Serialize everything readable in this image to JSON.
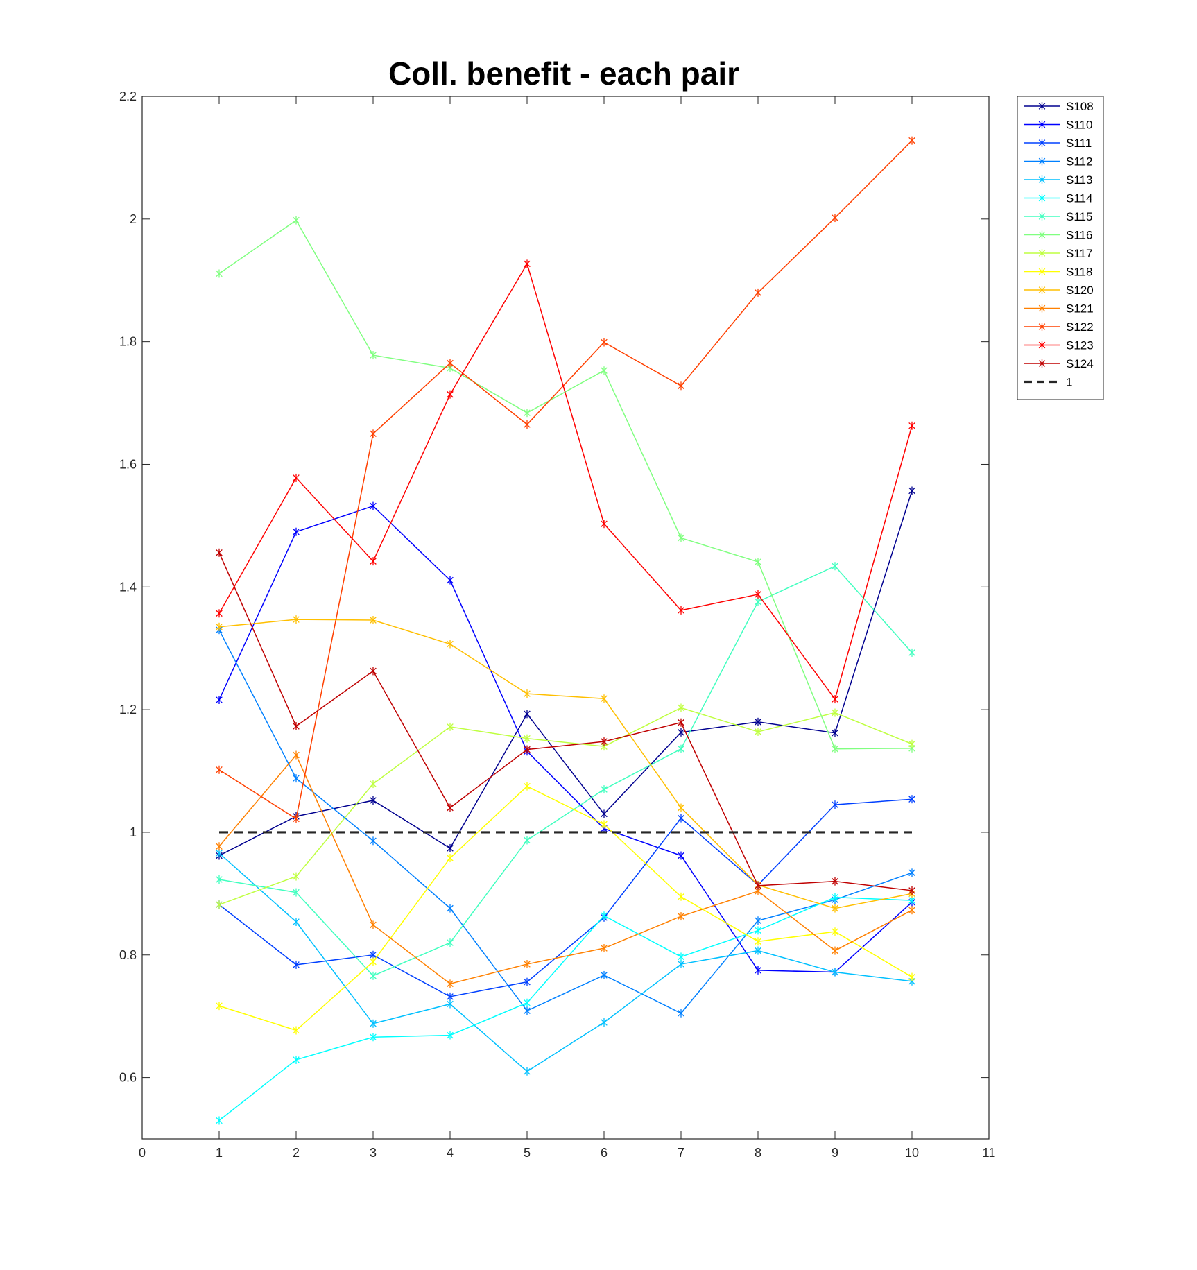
{
  "chart_data": {
    "type": "line",
    "title": "Coll. benefit - each pair",
    "xlabel": "",
    "ylabel": "",
    "xlim": [
      0,
      11
    ],
    "ylim": [
      0.5,
      2.2
    ],
    "xticks": [
      0,
      1,
      2,
      3,
      4,
      5,
      6,
      7,
      8,
      9,
      10,
      11
    ],
    "yticks": [
      0.6,
      0.8,
      1,
      1.2,
      1.4,
      1.6,
      1.8,
      2,
      2.2
    ],
    "grid": false,
    "legend_position": "outside-top-right",
    "marker": "asterisk",
    "x": [
      1,
      2,
      3,
      4,
      5,
      6,
      7,
      8,
      9,
      10
    ],
    "series": [
      {
        "name": "S108",
        "color": "#00008f",
        "values": [
          0.962,
          1.026,
          1.052,
          0.974,
          1.193,
          1.03,
          1.163,
          1.18,
          1.162,
          1.557
        ]
      },
      {
        "name": "S110",
        "color": "#0000ff",
        "values": [
          1.216,
          1.49,
          1.532,
          1.411,
          1.132,
          1.006,
          0.962,
          0.775,
          0.772,
          0.886
        ]
      },
      {
        "name": "S111",
        "color": "#0040ff",
        "values": [
          0.882,
          0.784,
          0.8,
          0.732,
          0.756,
          0.861,
          1.023,
          0.914,
          1.045,
          1.054
        ]
      },
      {
        "name": "S112",
        "color": "#0080ff",
        "values": [
          1.33,
          1.088,
          0.986,
          0.876,
          0.709,
          0.767,
          0.705,
          0.856,
          0.89,
          0.934
        ]
      },
      {
        "name": "S113",
        "color": "#00c0ff",
        "values": [
          0.966,
          0.854,
          0.688,
          0.72,
          0.61,
          0.69,
          0.785,
          0.807,
          0.772,
          0.757
        ]
      },
      {
        "name": "S114",
        "color": "#00ffff",
        "values": [
          0.53,
          0.629,
          0.666,
          0.669,
          0.722,
          0.864,
          0.797,
          0.84,
          0.894,
          0.889
        ]
      },
      {
        "name": "S115",
        "color": "#40ffbf",
        "values": [
          0.923,
          0.902,
          0.766,
          0.82,
          0.987,
          1.07,
          1.136,
          1.376,
          1.434,
          1.293
        ]
      },
      {
        "name": "S116",
        "color": "#80ff80",
        "values": [
          1.911,
          1.998,
          1.778,
          1.757,
          1.684,
          1.753,
          1.48,
          1.441,
          1.136,
          1.137
        ]
      },
      {
        "name": "S117",
        "color": "#bfff40",
        "values": [
          0.882,
          0.928,
          1.079,
          1.172,
          1.153,
          1.14,
          1.203,
          1.164,
          1.195,
          1.144
        ]
      },
      {
        "name": "S118",
        "color": "#ffff00",
        "values": [
          0.717,
          0.677,
          0.789,
          0.958,
          1.075,
          1.013,
          0.895,
          0.822,
          0.838,
          0.764
        ]
      },
      {
        "name": "S120",
        "color": "#ffbf00",
        "values": [
          1.335,
          1.347,
          1.346,
          1.307,
          1.226,
          1.218,
          1.04,
          0.914,
          0.876,
          0.9
        ]
      },
      {
        "name": "S121",
        "color": "#ff8000",
        "values": [
          0.977,
          1.126,
          0.849,
          0.753,
          0.785,
          0.811,
          0.863,
          0.904,
          0.807,
          0.873
        ]
      },
      {
        "name": "S122",
        "color": "#ff4000",
        "values": [
          1.102,
          1.022,
          1.65,
          1.765,
          1.665,
          1.799,
          1.728,
          1.88,
          2.002,
          2.128
        ]
      },
      {
        "name": "S123",
        "color": "#ff0000",
        "values": [
          1.357,
          1.578,
          1.442,
          1.714,
          1.927,
          1.503,
          1.362,
          1.388,
          1.217,
          1.663
        ]
      },
      {
        "name": "S124",
        "color": "#bf0000",
        "values": [
          1.456,
          1.173,
          1.263,
          1.04,
          1.135,
          1.148,
          1.179,
          0.913,
          0.92,
          0.905
        ]
      }
    ],
    "reference_line": {
      "name": "1",
      "y": 1,
      "x": [
        1,
        10
      ],
      "color": "#262626",
      "style": "dashed"
    }
  }
}
